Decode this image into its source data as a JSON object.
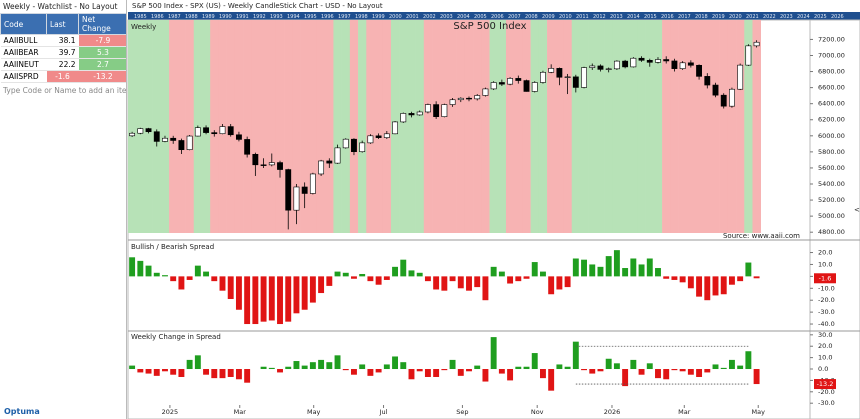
{
  "watchlist": {
    "title": "Weekly - Watchlist - No Layout",
    "columns": [
      "Code",
      "Last",
      "Net Change"
    ],
    "rows": [
      [
        "AAIIBULL",
        "38.1",
        "-7.9"
      ],
      [
        "AAIIBEAR",
        "39.7",
        "5.3"
      ],
      [
        "AAIINEUT",
        "22.2",
        "2.7"
      ],
      [
        "AAIISPRD",
        "-1.6",
        "-13.2"
      ]
    ],
    "placeholder": "Type Code or Name to add an item",
    "logo": "Optuma"
  },
  "chart_window": {
    "title": "S&P 500 Index - SPX (US) - Weekly CandleStick Chart - USD - No Layout",
    "year_strip": [
      1985,
      1986,
      1987,
      1988,
      1989,
      1990,
      1991,
      1992,
      1993,
      1994,
      1995,
      1996,
      1997,
      1998,
      1999,
      2000,
      2001,
      2002,
      2003,
      2004,
      2005,
      2006,
      2007,
      2008,
      2009,
      2010,
      2011,
      2012,
      2013,
      2014,
      2015,
      2016,
      2017,
      2018,
      2019,
      2020,
      2021,
      2022,
      2023,
      2024,
      2025,
      2026
    ]
  },
  "chart_data": [
    {
      "type": "candlestick",
      "panel_label": "Weekly",
      "title": "S&P 500 Index",
      "source": "Source: www.aaii.com",
      "ohlc": [
        [
          6000,
          6050,
          5985,
          6032
        ],
        [
          6032,
          6100,
          6020,
          6090
        ],
        [
          6090,
          6099,
          6030,
          6051
        ],
        [
          6051,
          6080,
          5867,
          5930
        ],
        [
          5930,
          6000,
          5920,
          5970
        ],
        [
          5970,
          6000,
          5900,
          5942
        ],
        [
          5942,
          5965,
          5773,
          5827
        ],
        [
          5827,
          6010,
          5820,
          5997
        ],
        [
          5997,
          6128,
          5990,
          6101
        ],
        [
          6101,
          6130,
          6020,
          6040
        ],
        [
          6040,
          6070,
          5990,
          6026
        ],
        [
          6026,
          6147,
          6020,
          6115
        ],
        [
          6115,
          6147,
          5990,
          6013
        ],
        [
          6013,
          6050,
          5930,
          5955
        ],
        [
          5955,
          5990,
          5730,
          5770
        ],
        [
          5770,
          5790,
          5500,
          5639
        ],
        [
          5639,
          5720,
          5600,
          5638
        ],
        [
          5638,
          5780,
          5620,
          5667
        ],
        [
          5667,
          5690,
          5480,
          5580
        ],
        [
          5580,
          5590,
          4835,
          5074
        ],
        [
          5074,
          5400,
          4900,
          5363
        ],
        [
          5363,
          5420,
          5100,
          5282
        ],
        [
          5282,
          5540,
          5270,
          5525
        ],
        [
          5525,
          5700,
          5500,
          5687
        ],
        [
          5687,
          5720,
          5600,
          5660
        ],
        [
          5660,
          5890,
          5650,
          5850
        ],
        [
          5850,
          5970,
          5840,
          5958
        ],
        [
          5958,
          5970,
          5760,
          5802
        ],
        [
          5802,
          5940,
          5790,
          5912
        ],
        [
          5912,
          6020,
          5900,
          6000
        ],
        [
          6000,
          6030,
          5960,
          5977
        ],
        [
          5977,
          6060,
          5960,
          6025
        ],
        [
          6025,
          6185,
          6020,
          6173
        ],
        [
          6173,
          6290,
          6160,
          6279
        ],
        [
          6279,
          6300,
          6230,
          6260
        ],
        [
          6260,
          6315,
          6250,
          6297
        ],
        [
          6297,
          6400,
          6280,
          6389
        ],
        [
          6389,
          6430,
          6210,
          6238
        ],
        [
          6238,
          6400,
          6230,
          6389
        ],
        [
          6389,
          6470,
          6360,
          6449
        ],
        [
          6449,
          6480,
          6420,
          6468
        ],
        [
          6468,
          6490,
          6430,
          6460
        ],
        [
          6460,
          6520,
          6440,
          6502
        ],
        [
          6502,
          6600,
          6490,
          6584
        ],
        [
          6584,
          6680,
          6570,
          6664
        ],
        [
          6664,
          6700,
          6620,
          6643
        ],
        [
          6643,
          6730,
          6630,
          6715
        ],
        [
          6715,
          6750,
          6650,
          6688
        ],
        [
          6688,
          6700,
          6550,
          6552
        ],
        [
          6552,
          6680,
          6540,
          6664
        ],
        [
          6664,
          6810,
          6650,
          6791
        ],
        [
          6791,
          6890,
          6780,
          6840
        ],
        [
          6840,
          6850,
          6630,
          6729
        ],
        [
          6729,
          6770,
          6520,
          6734
        ],
        [
          6734,
          6760,
          6540,
          6602
        ],
        [
          6602,
          6860,
          6590,
          6849
        ],
        [
          6849,
          6900,
          6820,
          6870
        ],
        [
          6870,
          6890,
          6800,
          6827
        ],
        [
          6827,
          6850,
          6790,
          6834
        ],
        [
          6834,
          6940,
          6820,
          6930
        ],
        [
          6930,
          6945,
          6840,
          6858
        ],
        [
          6858,
          6980,
          6850,
          6966
        ],
        [
          6966,
          6990,
          6920,
          6940
        ],
        [
          6940,
          6960,
          6860,
          6915
        ],
        [
          6915,
          6980,
          6900,
          6950
        ],
        [
          6950,
          6990,
          6900,
          6932
        ],
        [
          6932,
          6960,
          6800,
          6836
        ],
        [
          6836,
          6930,
          6820,
          6909
        ],
        [
          6909,
          6940,
          6850,
          6878
        ],
        [
          6878,
          6890,
          6700,
          6740
        ],
        [
          6740,
          6780,
          6590,
          6632
        ],
        [
          6632,
          6660,
          6480,
          6506
        ],
        [
          6506,
          6530,
          6340,
          6369
        ],
        [
          6369,
          6600,
          6350,
          6580
        ],
        [
          6580,
          6900,
          6570,
          6880
        ],
        [
          6880,
          7140,
          6870,
          7120
        ],
        [
          7120,
          7190,
          7100,
          7165
        ]
      ],
      "colors": {
        "up": "#ffffff",
        "down": "#000000",
        "positive": "#b7e2b7",
        "negative": "#f7b3b3"
      },
      "xlim": [
        -0.5,
        82.5
      ],
      "ylim": [
        4790,
        7280
      ],
      "yticks": [
        {
          "value": 4800,
          "label": "4800.00"
        },
        {
          "value": 5000,
          "label": "5000.00"
        },
        {
          "value": 5200,
          "label": "5200.00"
        },
        {
          "value": 5400,
          "label": "5400.00"
        },
        {
          "value": 5600,
          "label": "5600.00"
        },
        {
          "value": 5800,
          "label": "5800.00"
        },
        {
          "value": 6000,
          "label": "6000.00"
        },
        {
          "value": 6200,
          "label": "6200.00"
        },
        {
          "value": 6400,
          "label": "6400.00"
        },
        {
          "value": 6600,
          "label": "6600.00"
        },
        {
          "value": 6800,
          "label": "6800.00"
        },
        {
          "value": 7000,
          "label": "7000.00"
        },
        {
          "value": 7200,
          "label": "7200.00"
        }
      ]
    },
    {
      "type": "bar",
      "title": "Bullish / Bearish Spread",
      "values": [
        16,
        13,
        9,
        3,
        1,
        -4,
        -11,
        -3,
        9,
        4,
        -4,
        -12,
        -19,
        -28,
        -40,
        -40,
        -38,
        -37,
        -40,
        -38,
        -31,
        -28,
        -22,
        -14,
        -8,
        4,
        3,
        -2,
        2,
        -4,
        -7,
        -3,
        8,
        14,
        5,
        3,
        -4,
        -11,
        -12,
        -4,
        -10,
        -12,
        -9,
        -20,
        8,
        4,
        -6,
        -4,
        -2,
        12,
        4,
        -15,
        -11,
        -9,
        15,
        14,
        10,
        8,
        17,
        22,
        7,
        15,
        10,
        15,
        7,
        -2,
        -3,
        -5,
        -10,
        -17,
        -20,
        -16,
        -15,
        -7,
        -4,
        11.6,
        -1.6
      ],
      "last_label": "-1.6",
      "colors": {
        "positive": "#1f9e1f",
        "negative": "#e01414"
      },
      "xlim": [
        -0.5,
        82.5
      ],
      "ylim": [
        -45,
        28
      ],
      "yticks": [
        {
          "value": 20,
          "label": "20.0"
        },
        {
          "value": 10,
          "label": "10.0"
        },
        {
          "value": 0,
          "label": "0.0"
        },
        {
          "value": -10,
          "label": "-10.0"
        },
        {
          "value": -20,
          "label": "-20.0"
        },
        {
          "value": -30,
          "label": "-30.0"
        },
        {
          "value": -40,
          "label": "-40.0"
        }
      ]
    },
    {
      "type": "bar",
      "title": "Weekly Change in Spread",
      "values": [
        3,
        -3,
        -4,
        -6,
        -2,
        -5,
        -7,
        8,
        12,
        -5,
        -8,
        -8,
        -7,
        -9,
        -12,
        0,
        2,
        1,
        -3,
        2,
        7,
        3,
        6,
        8,
        6,
        12,
        -1,
        -5,
        4,
        -6,
        -3,
        4,
        11,
        6,
        -9,
        -2,
        -7,
        -7,
        -1,
        8,
        -6,
        -2,
        3,
        -11,
        28,
        -4,
        -10,
        2,
        2,
        14,
        -8,
        -19,
        4,
        2,
        24,
        -1,
        -4,
        -2,
        9,
        5,
        -15,
        8,
        -5,
        5,
        -8,
        -9,
        -1,
        -2,
        -5,
        -7,
        -3,
        4,
        1,
        8,
        3,
        15.6,
        -13.2
      ],
      "last_label": "-13.2",
      "hlines": [
        20,
        -13.2
      ],
      "hline_x": [
        54,
        75
      ],
      "colors": {
        "positive": "#1f9e1f",
        "negative": "#e01414"
      },
      "xlim": [
        -0.5,
        82.5
      ],
      "ylim": [
        -30.7,
        31.6
      ],
      "yticks": [
        {
          "value": 30,
          "label": "30.0"
        },
        {
          "value": 20,
          "label": "20.0"
        },
        {
          "value": 10,
          "label": "10.0"
        },
        {
          "value": 0,
          "label": "0.0"
        },
        {
          "value": -10,
          "label": "-10.0"
        },
        {
          "value": -20,
          "label": "-20.0"
        },
        {
          "value": -30,
          "label": "-30.0"
        }
      ],
      "xticks": [
        {
          "value": 4.6,
          "label": 2025
        },
        {
          "value": 13.1,
          "label": "Mar"
        },
        {
          "value": 22.1,
          "label": "May"
        },
        {
          "value": 30.6,
          "label": "Jul"
        },
        {
          "value": 40.2,
          "label": "Sep"
        },
        {
          "value": 49.3,
          "label": "Nov"
        },
        {
          "value": 58.4,
          "label": "2026"
        },
        {
          "value": 67.2,
          "label": "Mar"
        },
        {
          "value": 76.2,
          "label": "May"
        }
      ]
    }
  ]
}
